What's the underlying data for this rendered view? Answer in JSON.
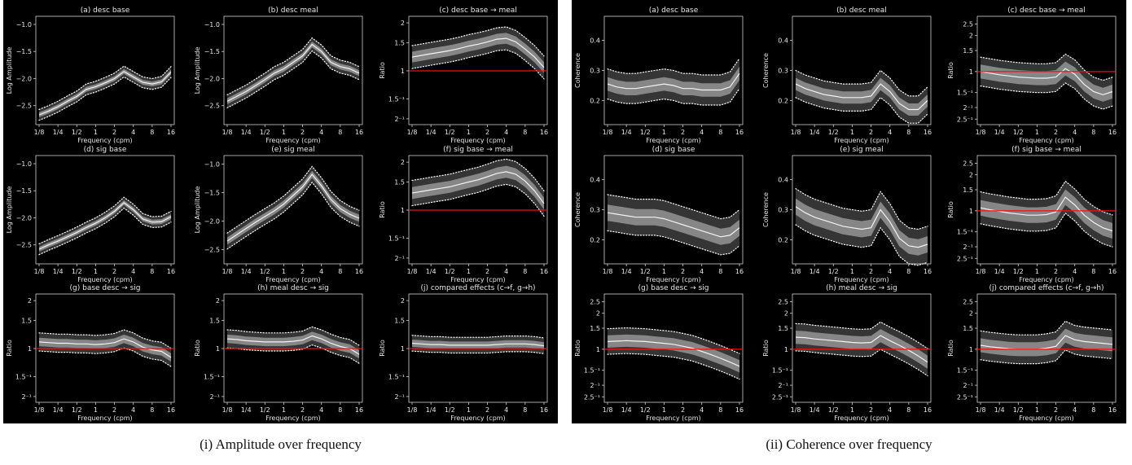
{
  "captions": {
    "left": "(i) Amplitude over frequency",
    "right": "(ii) Coherence over frequency"
  },
  "common": {
    "xlabel": "Frequency (cpm)",
    "xticks": [
      {
        "v": 0.125,
        "label": "1/8"
      },
      {
        "v": 0.25,
        "label": "1/4"
      },
      {
        "v": 0.5,
        "label": "1/2"
      },
      {
        "v": 1,
        "label": "1"
      },
      {
        "v": 2,
        "label": "2"
      },
      {
        "v": 4,
        "label": "4"
      },
      {
        "v": 8,
        "label": "8"
      },
      {
        "v": 16,
        "label": "16"
      }
    ],
    "xlim": [
      0.125,
      16
    ],
    "x": [
      0.125,
      0.177,
      0.25,
      0.354,
      0.5,
      0.707,
      1,
      1.414,
      2,
      2.83,
      4,
      5.66,
      8,
      11.3,
      16
    ],
    "reference_line_color": "#ee1111",
    "band_color": "#bdbdbd",
    "background": "#000000"
  },
  "chart_data": [
    {
      "figure": "left",
      "title": "(a) desc base",
      "type": "line",
      "ylabel": "Log Amplitude",
      "scale": "linear",
      "ylim": [
        -2.85,
        -0.85
      ],
      "yticks": [
        {
          "v": -2.5,
          "label": "−2.5"
        },
        {
          "v": -2.0,
          "label": "−2.0"
        },
        {
          "v": -1.5,
          "label": "−1.5"
        },
        {
          "v": -1.0,
          "label": "−1.0"
        }
      ],
      "median": [
        -2.67,
        -2.6,
        -2.52,
        -2.42,
        -2.33,
        -2.2,
        -2.15,
        -2.08,
        -2.0,
        -1.87,
        -1.97,
        -2.07,
        -2.1,
        -2.06,
        -1.88
      ],
      "band": 0.1,
      "refline": null
    },
    {
      "figure": "left",
      "title": "(b) desc meal",
      "type": "line",
      "ylabel": "Log Amplitude",
      "scale": "linear",
      "ylim": [
        -2.85,
        -0.85
      ],
      "yticks": [
        {
          "v": -2.5,
          "label": "−2.5"
        },
        {
          "v": -2.0,
          "label": "−2.0"
        },
        {
          "v": -1.5,
          "label": "−1.5"
        },
        {
          "v": -1.0,
          "label": "−1.0"
        }
      ],
      "median": [
        -2.42,
        -2.33,
        -2.24,
        -2.13,
        -2.02,
        -1.9,
        -1.82,
        -1.7,
        -1.58,
        -1.37,
        -1.5,
        -1.7,
        -1.78,
        -1.82,
        -1.9
      ],
      "band": 0.12,
      "refline": null
    },
    {
      "figure": "left",
      "title": "(c) desc base → meal",
      "type": "line",
      "ylabel": "Ratio",
      "scale": "log2",
      "ylim": [
        0.46,
        2.2
      ],
      "yticks": [
        {
          "v": 0.5,
          "label": "2⁻¹"
        },
        {
          "v": 0.6667,
          "label": "1.5⁻¹"
        },
        {
          "v": 1,
          "label": "1"
        },
        {
          "v": 1.5,
          "label": "1.5"
        },
        {
          "v": 2,
          "label": "2"
        }
      ],
      "median": [
        1.22,
        1.25,
        1.28,
        1.31,
        1.34,
        1.38,
        1.43,
        1.47,
        1.52,
        1.58,
        1.6,
        1.52,
        1.37,
        1.22,
        1.05
      ],
      "band": 0.18,
      "refline": 1
    },
    {
      "figure": "left",
      "title": "(d) sig base",
      "type": "line",
      "ylabel": "Log Amplitude",
      "scale": "linear",
      "ylim": [
        -2.85,
        -0.85
      ],
      "yticks": [
        {
          "v": -2.5,
          "label": "−2.5"
        },
        {
          "v": -2.0,
          "label": "−2.0"
        },
        {
          "v": -1.5,
          "label": "−1.5"
        },
        {
          "v": -1.0,
          "label": "−1.0"
        }
      ],
      "median": [
        -2.58,
        -2.5,
        -2.43,
        -2.35,
        -2.27,
        -2.18,
        -2.1,
        -2.0,
        -1.88,
        -1.72,
        -1.85,
        -2.02,
        -2.08,
        -2.07,
        -1.98
      ],
      "band": 0.1,
      "refline": null
    },
    {
      "figure": "left",
      "title": "(e) sig meal",
      "type": "line",
      "ylabel": "Log Amplitude",
      "scale": "linear",
      "ylim": [
        -2.75,
        -0.85
      ],
      "yticks": [
        {
          "v": -2.5,
          "label": "−2.5"
        },
        {
          "v": -2.0,
          "label": "−2.0"
        },
        {
          "v": -1.5,
          "label": "−1.5"
        },
        {
          "v": -1.0,
          "label": "−1.0"
        }
      ],
      "median": [
        -2.35,
        -2.24,
        -2.13,
        -2.02,
        -1.92,
        -1.82,
        -1.7,
        -1.55,
        -1.4,
        -1.18,
        -1.38,
        -1.62,
        -1.78,
        -1.88,
        -1.95
      ],
      "band": 0.14,
      "refline": null
    },
    {
      "figure": "left",
      "title": "(f) sig base → meal",
      "type": "line",
      "ylabel": "Ratio",
      "scale": "log2",
      "ylim": [
        0.46,
        2.2
      ],
      "yticks": [
        {
          "v": 0.5,
          "label": "2⁻¹"
        },
        {
          "v": 0.6667,
          "label": "1.5⁻¹"
        },
        {
          "v": 1,
          "label": "1"
        },
        {
          "v": 1.5,
          "label": "1.5"
        },
        {
          "v": 2,
          "label": "2"
        }
      ],
      "median": [
        1.28,
        1.31,
        1.34,
        1.37,
        1.4,
        1.45,
        1.5,
        1.55,
        1.62,
        1.7,
        1.74,
        1.68,
        1.52,
        1.32,
        1.1
      ],
      "band": 0.2,
      "refline": 1
    },
    {
      "figure": "left",
      "title": "(g) base desc → sig",
      "type": "line",
      "ylabel": "Ratio",
      "scale": "log2",
      "ylim": [
        0.46,
        2.2
      ],
      "yticks": [
        {
          "v": 0.5,
          "label": "2⁻¹"
        },
        {
          "v": 0.6667,
          "label": "1.5⁻¹"
        },
        {
          "v": 1,
          "label": "1"
        },
        {
          "v": 1.5,
          "label": "1.5"
        },
        {
          "v": 2,
          "label": "2"
        }
      ],
      "median": [
        1.1,
        1.09,
        1.08,
        1.08,
        1.07,
        1.07,
        1.06,
        1.07,
        1.09,
        1.15,
        1.1,
        1.02,
        0.98,
        0.96,
        0.88
      ],
      "band": 0.14,
      "refline": 1
    },
    {
      "figure": "left",
      "title": "(h) meal desc → sig",
      "type": "line",
      "ylabel": "Ratio",
      "scale": "log2",
      "ylim": [
        0.46,
        2.2
      ],
      "yticks": [
        {
          "v": 0.5,
          "label": "2⁻¹"
        },
        {
          "v": 0.6667,
          "label": "1.5⁻¹"
        },
        {
          "v": 1,
          "label": "1"
        },
        {
          "v": 1.5,
          "label": "1.5"
        },
        {
          "v": 2,
          "label": "2"
        }
      ],
      "median": [
        1.15,
        1.14,
        1.12,
        1.11,
        1.1,
        1.1,
        1.1,
        1.11,
        1.13,
        1.2,
        1.15,
        1.08,
        1.03,
        1.0,
        0.92
      ],
      "band": 0.14,
      "refline": 1
    },
    {
      "figure": "left",
      "title": "(j) compared effects (c→f, g→h)",
      "type": "line",
      "ylabel": "Ratio",
      "scale": "log2",
      "ylim": [
        0.46,
        2.2
      ],
      "yticks": [
        {
          "v": 0.5,
          "label": "2⁻¹"
        },
        {
          "v": 0.6667,
          "label": "1.5⁻¹"
        },
        {
          "v": 1,
          "label": "1"
        },
        {
          "v": 1.5,
          "label": "1.5"
        },
        {
          "v": 2,
          "label": "2"
        }
      ],
      "median": [
        1.08,
        1.07,
        1.06,
        1.06,
        1.05,
        1.05,
        1.05,
        1.05,
        1.05,
        1.06,
        1.07,
        1.07,
        1.07,
        1.06,
        1.04
      ],
      "band": 0.12,
      "refline": 1
    },
    {
      "figure": "right",
      "title": "(a) desc base",
      "type": "line",
      "ylabel": "Coherence",
      "scale": "linear",
      "ylim": [
        0.12,
        0.48
      ],
      "yticks": [
        {
          "v": 0.2,
          "label": "0.2"
        },
        {
          "v": 0.3,
          "label": "0.3"
        },
        {
          "v": 0.4,
          "label": "0.4"
        }
      ],
      "median": [
        0.255,
        0.245,
        0.24,
        0.24,
        0.245,
        0.25,
        0.255,
        0.25,
        0.24,
        0.24,
        0.235,
        0.235,
        0.235,
        0.245,
        0.29
      ],
      "band": 0.05,
      "refline": null
    },
    {
      "figure": "right",
      "title": "(b) desc meal",
      "type": "line",
      "ylabel": "Coherence",
      "scale": "linear",
      "ylim": [
        0.12,
        0.48
      ],
      "yticks": [
        {
          "v": 0.2,
          "label": "0.2"
        },
        {
          "v": 0.3,
          "label": "0.3"
        },
        {
          "v": 0.4,
          "label": "0.4"
        }
      ],
      "median": [
        0.255,
        0.24,
        0.23,
        0.22,
        0.215,
        0.21,
        0.21,
        0.21,
        0.215,
        0.255,
        0.23,
        0.19,
        0.17,
        0.17,
        0.2
      ],
      "band": 0.045,
      "refline": null
    },
    {
      "figure": "right",
      "title": "(c) desc base → meal",
      "type": "line",
      "ylabel": "Ratio",
      "scale": "log2",
      "ylim": [
        0.36,
        2.9
      ],
      "yticks": [
        {
          "v": 0.4,
          "label": "2.5⁻¹"
        },
        {
          "v": 0.5,
          "label": "2⁻¹"
        },
        {
          "v": 0.6667,
          "label": "1.5⁻¹"
        },
        {
          "v": 1,
          "label": "1"
        },
        {
          "v": 1.5,
          "label": "1.5"
        },
        {
          "v": 2,
          "label": "2"
        },
        {
          "v": 2.5,
          "label": "2.5"
        }
      ],
      "median": [
        1.0,
        0.97,
        0.94,
        0.92,
        0.9,
        0.89,
        0.88,
        0.88,
        0.9,
        1.06,
        0.95,
        0.78,
        0.68,
        0.64,
        0.68
      ],
      "band": 0.32,
      "refline": 1
    },
    {
      "figure": "right",
      "title": "(d) sig base",
      "type": "line",
      "ylabel": "Coherence",
      "scale": "linear",
      "ylim": [
        0.12,
        0.48
      ],
      "yticks": [
        {
          "v": 0.2,
          "label": "0.2"
        },
        {
          "v": 0.3,
          "label": "0.3"
        },
        {
          "v": 0.4,
          "label": "0.4"
        }
      ],
      "median": [
        0.29,
        0.285,
        0.28,
        0.275,
        0.275,
        0.275,
        0.27,
        0.26,
        0.25,
        0.24,
        0.23,
        0.22,
        0.21,
        0.215,
        0.24
      ],
      "band": 0.06,
      "refline": null
    },
    {
      "figure": "right",
      "title": "(e) sig meal",
      "type": "line",
      "ylabel": "Coherence",
      "scale": "linear",
      "ylim": [
        0.12,
        0.48
      ],
      "yticks": [
        {
          "v": 0.2,
          "label": "0.2"
        },
        {
          "v": 0.3,
          "label": "0.3"
        },
        {
          "v": 0.4,
          "label": "0.4"
        }
      ],
      "median": [
        0.31,
        0.29,
        0.275,
        0.265,
        0.255,
        0.245,
        0.24,
        0.235,
        0.24,
        0.3,
        0.26,
        0.205,
        0.18,
        0.175,
        0.185
      ],
      "band": 0.06,
      "refline": null
    },
    {
      "figure": "right",
      "title": "(f) sig base → meal",
      "type": "line",
      "ylabel": "Ratio",
      "scale": "log2",
      "ylim": [
        0.36,
        2.9
      ],
      "yticks": [
        {
          "v": 0.4,
          "label": "2.5⁻¹"
        },
        {
          "v": 0.5,
          "label": "2⁻¹"
        },
        {
          "v": 0.6667,
          "label": "1.5⁻¹"
        },
        {
          "v": 1,
          "label": "1"
        },
        {
          "v": 1.5,
          "label": "1.5"
        },
        {
          "v": 2,
          "label": "2"
        },
        {
          "v": 2.5,
          "label": "2.5"
        }
      ],
      "median": [
        1.06,
        1.02,
        0.99,
        0.96,
        0.94,
        0.92,
        0.92,
        0.93,
        0.98,
        1.3,
        1.12,
        0.92,
        0.8,
        0.72,
        0.68
      ],
      "band": 0.36,
      "refline": 1
    },
    {
      "figure": "right",
      "title": "(g) base desc → sig",
      "type": "line",
      "ylabel": "Ratio",
      "scale": "log2",
      "ylim": [
        0.36,
        2.9
      ],
      "yticks": [
        {
          "v": 0.4,
          "label": "2.5⁻¹"
        },
        {
          "v": 0.5,
          "label": "2⁻¹"
        },
        {
          "v": 0.6667,
          "label": "1.5⁻¹"
        },
        {
          "v": 1,
          "label": "1"
        },
        {
          "v": 1.5,
          "label": "1.5"
        },
        {
          "v": 2,
          "label": "2"
        },
        {
          "v": 2.5,
          "label": "2.5"
        }
      ],
      "median": [
        1.16,
        1.17,
        1.18,
        1.17,
        1.16,
        1.14,
        1.12,
        1.1,
        1.06,
        1.02,
        0.96,
        0.9,
        0.84,
        0.78,
        0.72
      ],
      "band": 0.28,
      "refline": 1
    },
    {
      "figure": "right",
      "title": "(h) meal desc → sig",
      "type": "line",
      "ylabel": "Ratio",
      "scale": "log2",
      "ylim": [
        0.36,
        2.9
      ],
      "yticks": [
        {
          "v": 0.4,
          "label": "2.5⁻¹"
        },
        {
          "v": 0.5,
          "label": "2⁻¹"
        },
        {
          "v": 0.6667,
          "label": "1.5⁻¹"
        },
        {
          "v": 1,
          "label": "1"
        },
        {
          "v": 1.5,
          "label": "1.5"
        },
        {
          "v": 2,
          "label": "2"
        },
        {
          "v": 2.5,
          "label": "2.5"
        }
      ],
      "median": [
        1.26,
        1.25,
        1.22,
        1.2,
        1.18,
        1.16,
        1.14,
        1.13,
        1.14,
        1.3,
        1.18,
        1.08,
        0.98,
        0.88,
        0.78
      ],
      "band": 0.3,
      "refline": 1
    },
    {
      "figure": "right",
      "title": "(j) compared effects (c→f, g→h)",
      "type": "line",
      "ylabel": "Ratio",
      "scale": "log2",
      "ylim": [
        0.36,
        2.9
      ],
      "yticks": [
        {
          "v": 0.4,
          "label": "2.5⁻¹"
        },
        {
          "v": 0.5,
          "label": "2⁻¹"
        },
        {
          "v": 0.6667,
          "label": "1.5⁻¹"
        },
        {
          "v": 1,
          "label": "1"
        },
        {
          "v": 1.5,
          "label": "1.5"
        },
        {
          "v": 2,
          "label": "2"
        },
        {
          "v": 2.5,
          "label": "2.5"
        }
      ],
      "median": [
        1.08,
        1.05,
        1.03,
        1.01,
        1.0,
        1.0,
        1.0,
        1.02,
        1.06,
        1.3,
        1.2,
        1.16,
        1.14,
        1.12,
        1.1
      ],
      "band": 0.32,
      "refline": 1
    }
  ]
}
